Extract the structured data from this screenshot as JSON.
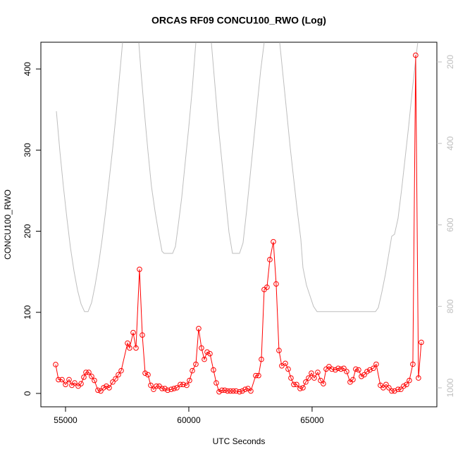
{
  "chart_data": {
    "type": "line",
    "title": "ORCAS RF09 CONCU100_RWO (Log)",
    "xlabel": "UTC Seconds",
    "ylabel": "CONCU100_RWO",
    "xlim": [
      54000,
      70060
    ],
    "xticks": [
      {
        "value": 55000,
        "label": "55000"
      },
      {
        "value": 60000,
        "label": "60000"
      },
      {
        "value": 65000,
        "label": "65000"
      }
    ],
    "ylim": [
      -16.5,
      433
    ],
    "yticks": [
      0,
      100,
      200,
      300,
      400
    ],
    "y2lim": [
      1046.6,
      151.6
    ],
    "y2ticks": [
      200,
      400,
      600,
      800,
      1000
    ],
    "series": [
      {
        "color": "#ff0000",
        "markers": true,
        "x": [
          54600,
          54714,
          54857,
          55000,
          55143,
          55257,
          55371,
          55514,
          55629,
          55743,
          55829,
          55943,
          56057,
          56171,
          56314,
          56429,
          56543,
          56657,
          56771,
          56914,
          57029,
          57143,
          57257,
          57514,
          57600,
          57743,
          57857,
          58000,
          58114,
          58229,
          58343,
          58457,
          58571,
          58686,
          58800,
          58914,
          59029,
          59143,
          59286,
          59400,
          59514,
          59657,
          59771,
          59914,
          60029,
          60143,
          60286,
          60400,
          60514,
          60629,
          60743,
          60857,
          61000,
          61114,
          61229,
          61343,
          61457,
          61571,
          61686,
          61800,
          61914,
          62057,
          62171,
          62286,
          62400,
          62514,
          62714,
          62829,
          62943,
          63057,
          63171,
          63286,
          63429,
          63543,
          63657,
          63771,
          63914,
          64029,
          64143,
          64257,
          64371,
          64514,
          64629,
          64743,
          64857,
          64971,
          65086,
          65229,
          65343,
          65457,
          65571,
          65686,
          65800,
          65943,
          66057,
          66171,
          66286,
          66400,
          66543,
          66657,
          66771,
          66886,
          67000,
          67114,
          67229,
          67343,
          67486,
          67600,
          67771,
          67886,
          68000,
          68114,
          68229,
          68343,
          68486,
          68600,
          68714,
          68829,
          68943,
          69086,
          69200,
          69314,
          69429
        ],
        "values": [
          35.6,
          17,
          17,
          11,
          17,
          10,
          13,
          9,
          12,
          20,
          26,
          26,
          21,
          16,
          4,
          3,
          7,
          9,
          7,
          14,
          18,
          23,
          28,
          62,
          56,
          75,
          56,
          153,
          72,
          25,
          23,
          10,
          5,
          9,
          9,
          6,
          6,
          4,
          5,
          6,
          7,
          11,
          11,
          10,
          16,
          28,
          36,
          80,
          56,
          42,
          51,
          49,
          29,
          13,
          2,
          4,
          4,
          3,
          3,
          3,
          3,
          2,
          3,
          5,
          6,
          3,
          22,
          22,
          42,
          128,
          131,
          165,
          187,
          135,
          53,
          34,
          37,
          30,
          19,
          11,
          11,
          6,
          7,
          14,
          19,
          25,
          19,
          26,
          16,
          12,
          30,
          33,
          30,
          29,
          31,
          30,
          31,
          27,
          14,
          17,
          30,
          29,
          21,
          23,
          27,
          29,
          31,
          36,
          10,
          7,
          11,
          7,
          3,
          3,
          5,
          5,
          9,
          11,
          16,
          36,
          417,
          19,
          63
        ]
      },
      {
        "color": "#bebebe",
        "axis": "y2",
        "x": [
          54629,
          54771,
          54914,
          55057,
          55200,
          55343,
          55486,
          55629,
          55771,
          55914,
          56057,
          56200,
          56343,
          56486,
          56629,
          56771,
          56914,
          57057,
          57200,
          57314,
          57640,
          57971,
          58057,
          58200,
          58343,
          58486,
          58629,
          58771,
          58914,
          59000,
          59200,
          59343,
          59457,
          59571,
          59714,
          59857,
          60000,
          60143,
          60286,
          60600,
          60914,
          61057,
          61200,
          61343,
          61486,
          61629,
          61771,
          62057,
          62200,
          62343,
          62486,
          62629,
          62771,
          62914,
          63057,
          63370,
          63686,
          63829,
          63971,
          64114,
          64257,
          64400,
          64543,
          64629,
          64771,
          64914,
          65057,
          65200,
          65486,
          66057,
          66629,
          67200,
          67571,
          67686,
          67829,
          67971,
          68114,
          68229,
          68343,
          68486,
          68629,
          68771,
          68914,
          69057,
          69200,
          69286
        ],
        "values": [
          321,
          419,
          506,
          584,
          656,
          713,
          760,
          794,
          813,
          813,
          791,
          748,
          696,
          635,
          566,
          489,
          411,
          324,
          229,
          152,
          null,
          152,
          221,
          324,
          419,
          506,
          566,
          618,
          665,
          670,
          670,
          670,
          653,
          601,
          532,
          445,
          359,
          264,
          152,
          null,
          152,
          255,
          359,
          445,
          532,
          618,
          670,
          670,
          644,
          566,
          480,
          394,
          307,
          221,
          152,
          null,
          152,
          238,
          324,
          411,
          489,
          566,
          635,
          705,
          748,
          774,
          800,
          813,
          813,
          813,
          813,
          813,
          813,
          803,
          765,
          722,
          670,
          628,
          623,
          584,
          514,
          437,
          359,
          273,
          195,
          152
        ]
      }
    ]
  }
}
